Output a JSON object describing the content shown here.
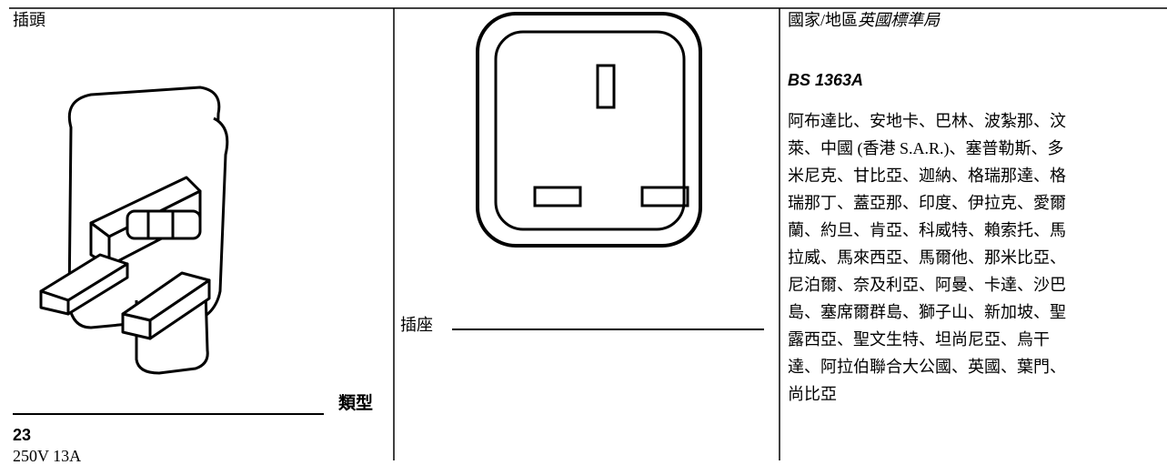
{
  "plug": {
    "label": "插頭",
    "type_label": "類型",
    "type_number": "23",
    "rating": "250V 13A"
  },
  "socket": {
    "label": "插座"
  },
  "country": {
    "heading": "國家/地區",
    "heading_italic": "英國標準局",
    "standard": "BS 1363A",
    "lines": [
      "阿布達比、安地卡、巴林、波紮那、汶",
      "萊、中國 (香港 S.A.R.)、塞普勒斯、多",
      "米尼克、甘比亞、迦納、格瑞那達、格",
      "瑞那丁、蓋亞那、印度、伊拉克、愛爾",
      "蘭、約旦、肯亞、科威特、賴索托、馬",
      "拉威、馬來西亞、馬爾他、那米比亞、",
      "尼泊爾、奈及利亞、阿曼、卡達、沙巴",
      "島、塞席爾群島、獅子山、新加坡、聖",
      "露西亞、聖文生特、坦尚尼亞、烏干",
      "達、阿拉伯聯合大公國、英國、葉門、",
      "尚比亞"
    ]
  }
}
